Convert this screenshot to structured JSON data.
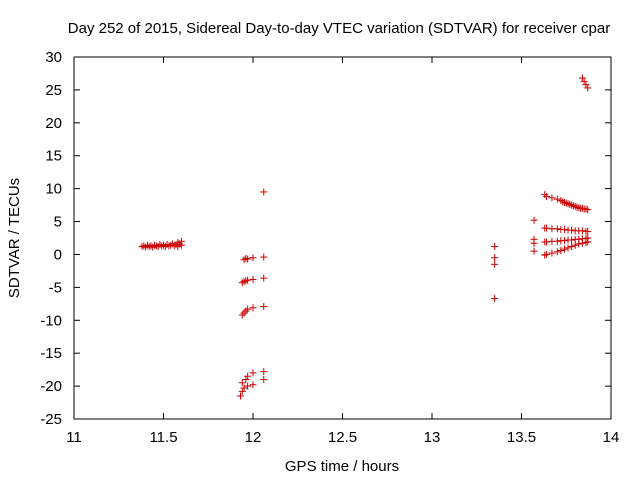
{
  "chart_data": {
    "type": "scatter",
    "title": "Day 252 of 2015, Sidereal Day-to-day VTEC variation (SDTVAR) for receiver cpar",
    "xlabel": "GPS time / hours",
    "ylabel": "SDTVAR / TECUs",
    "xlim": [
      11,
      14
    ],
    "ylim": [
      -25,
      30
    ],
    "xticks": [
      "11",
      "11.5",
      "12",
      "12.5",
      "13",
      "13.5",
      "14"
    ],
    "yticks": [
      "-25",
      "-20",
      "-15",
      "-10",
      "-5",
      "0",
      "5",
      "10",
      "15",
      "20",
      "25",
      "30"
    ],
    "grid": false,
    "marker": "+",
    "marker_color": "#cc0000",
    "series": [
      {
        "name": "SDTVAR",
        "points": [
          [
            11.38,
            1.2
          ],
          [
            11.39,
            1.3
          ],
          [
            11.4,
            1.1
          ],
          [
            11.41,
            1.4
          ],
          [
            11.42,
            1.2
          ],
          [
            11.43,
            1.3
          ],
          [
            11.44,
            1.1
          ],
          [
            11.45,
            1.4
          ],
          [
            11.46,
            1.3
          ],
          [
            11.47,
            1.2
          ],
          [
            11.48,
            1.5
          ],
          [
            11.49,
            1.3
          ],
          [
            11.5,
            1.4
          ],
          [
            11.51,
            1.2
          ],
          [
            11.52,
            1.5
          ],
          [
            11.53,
            1.3
          ],
          [
            11.54,
            1.4
          ],
          [
            11.55,
            1.6
          ],
          [
            11.56,
            1.3
          ],
          [
            11.57,
            1.5
          ],
          [
            11.58,
            1.8
          ],
          [
            11.58,
            1.2
          ],
          [
            11.59,
            1.6
          ],
          [
            11.6,
            1.4
          ],
          [
            11.6,
            2.0
          ],
          [
            11.95,
            -0.8
          ],
          [
            11.96,
            -0.6
          ],
          [
            11.97,
            -0.7
          ],
          [
            12.0,
            -0.5
          ],
          [
            12.06,
            -0.4
          ],
          [
            11.94,
            -4.3
          ],
          [
            11.95,
            -4.1
          ],
          [
            11.96,
            -4.0
          ],
          [
            11.97,
            -3.9
          ],
          [
            12.0,
            -3.8
          ],
          [
            12.06,
            -3.6
          ],
          [
            11.94,
            -9.2
          ],
          [
            11.95,
            -8.9
          ],
          [
            11.96,
            -8.6
          ],
          [
            11.97,
            -8.3
          ],
          [
            12.0,
            -8.1
          ],
          [
            12.06,
            -7.9
          ],
          [
            11.93,
            -21.5
          ],
          [
            11.94,
            -20.8
          ],
          [
            11.95,
            -20.3
          ],
          [
            11.94,
            -19.5
          ],
          [
            11.96,
            -19.0
          ],
          [
            11.97,
            -18.5
          ],
          [
            11.97,
            -20.0
          ],
          [
            12.0,
            -18.0
          ],
          [
            12.0,
            -19.8
          ],
          [
            12.06,
            -17.8
          ],
          [
            12.06,
            -19.0
          ],
          [
            12.06,
            9.5
          ],
          [
            13.35,
            1.2
          ],
          [
            13.35,
            -0.5
          ],
          [
            13.35,
            -1.5
          ],
          [
            13.35,
            -6.7
          ],
          [
            13.57,
            5.2
          ],
          [
            13.57,
            2.3
          ],
          [
            13.57,
            1.7
          ],
          [
            13.57,
            0.5
          ],
          [
            13.63,
            9.1
          ],
          [
            13.64,
            8.8
          ],
          [
            13.67,
            8.6
          ],
          [
            13.7,
            8.4
          ],
          [
            13.72,
            8.2
          ],
          [
            13.73,
            8.0
          ],
          [
            13.74,
            7.9
          ],
          [
            13.75,
            7.8
          ],
          [
            13.76,
            7.7
          ],
          [
            13.77,
            7.6
          ],
          [
            13.78,
            7.5
          ],
          [
            13.79,
            7.4
          ],
          [
            13.8,
            7.3
          ],
          [
            13.81,
            7.2
          ],
          [
            13.82,
            7.1
          ],
          [
            13.83,
            7.0
          ],
          [
            13.84,
            7.0
          ],
          [
            13.85,
            6.9
          ],
          [
            13.86,
            6.9
          ],
          [
            13.87,
            6.8
          ],
          [
            13.63,
            4.0
          ],
          [
            13.64,
            4.0
          ],
          [
            13.67,
            3.9
          ],
          [
            13.7,
            3.9
          ],
          [
            13.72,
            3.8
          ],
          [
            13.74,
            3.8
          ],
          [
            13.76,
            3.7
          ],
          [
            13.78,
            3.7
          ],
          [
            13.8,
            3.6
          ],
          [
            13.82,
            3.6
          ],
          [
            13.84,
            3.6
          ],
          [
            13.86,
            3.5
          ],
          [
            13.87,
            3.5
          ],
          [
            13.63,
            1.9
          ],
          [
            13.64,
            1.9
          ],
          [
            13.67,
            2.0
          ],
          [
            13.7,
            2.0
          ],
          [
            13.72,
            2.1
          ],
          [
            13.74,
            2.1
          ],
          [
            13.76,
            2.2
          ],
          [
            13.78,
            2.2
          ],
          [
            13.8,
            2.3
          ],
          [
            13.82,
            2.3
          ],
          [
            13.84,
            2.4
          ],
          [
            13.86,
            2.4
          ],
          [
            13.87,
            2.5
          ],
          [
            13.63,
            -0.1
          ],
          [
            13.64,
            0.0
          ],
          [
            13.67,
            0.2
          ],
          [
            13.7,
            0.4
          ],
          [
            13.72,
            0.6
          ],
          [
            13.74,
            0.8
          ],
          [
            13.76,
            1.0
          ],
          [
            13.78,
            1.2
          ],
          [
            13.8,
            1.4
          ],
          [
            13.82,
            1.6
          ],
          [
            13.84,
            1.7
          ],
          [
            13.86,
            1.8
          ],
          [
            13.87,
            1.9
          ],
          [
            13.84,
            26.8
          ],
          [
            13.85,
            26.3
          ],
          [
            13.86,
            25.8
          ],
          [
            13.87,
            25.3
          ]
        ]
      }
    ]
  }
}
